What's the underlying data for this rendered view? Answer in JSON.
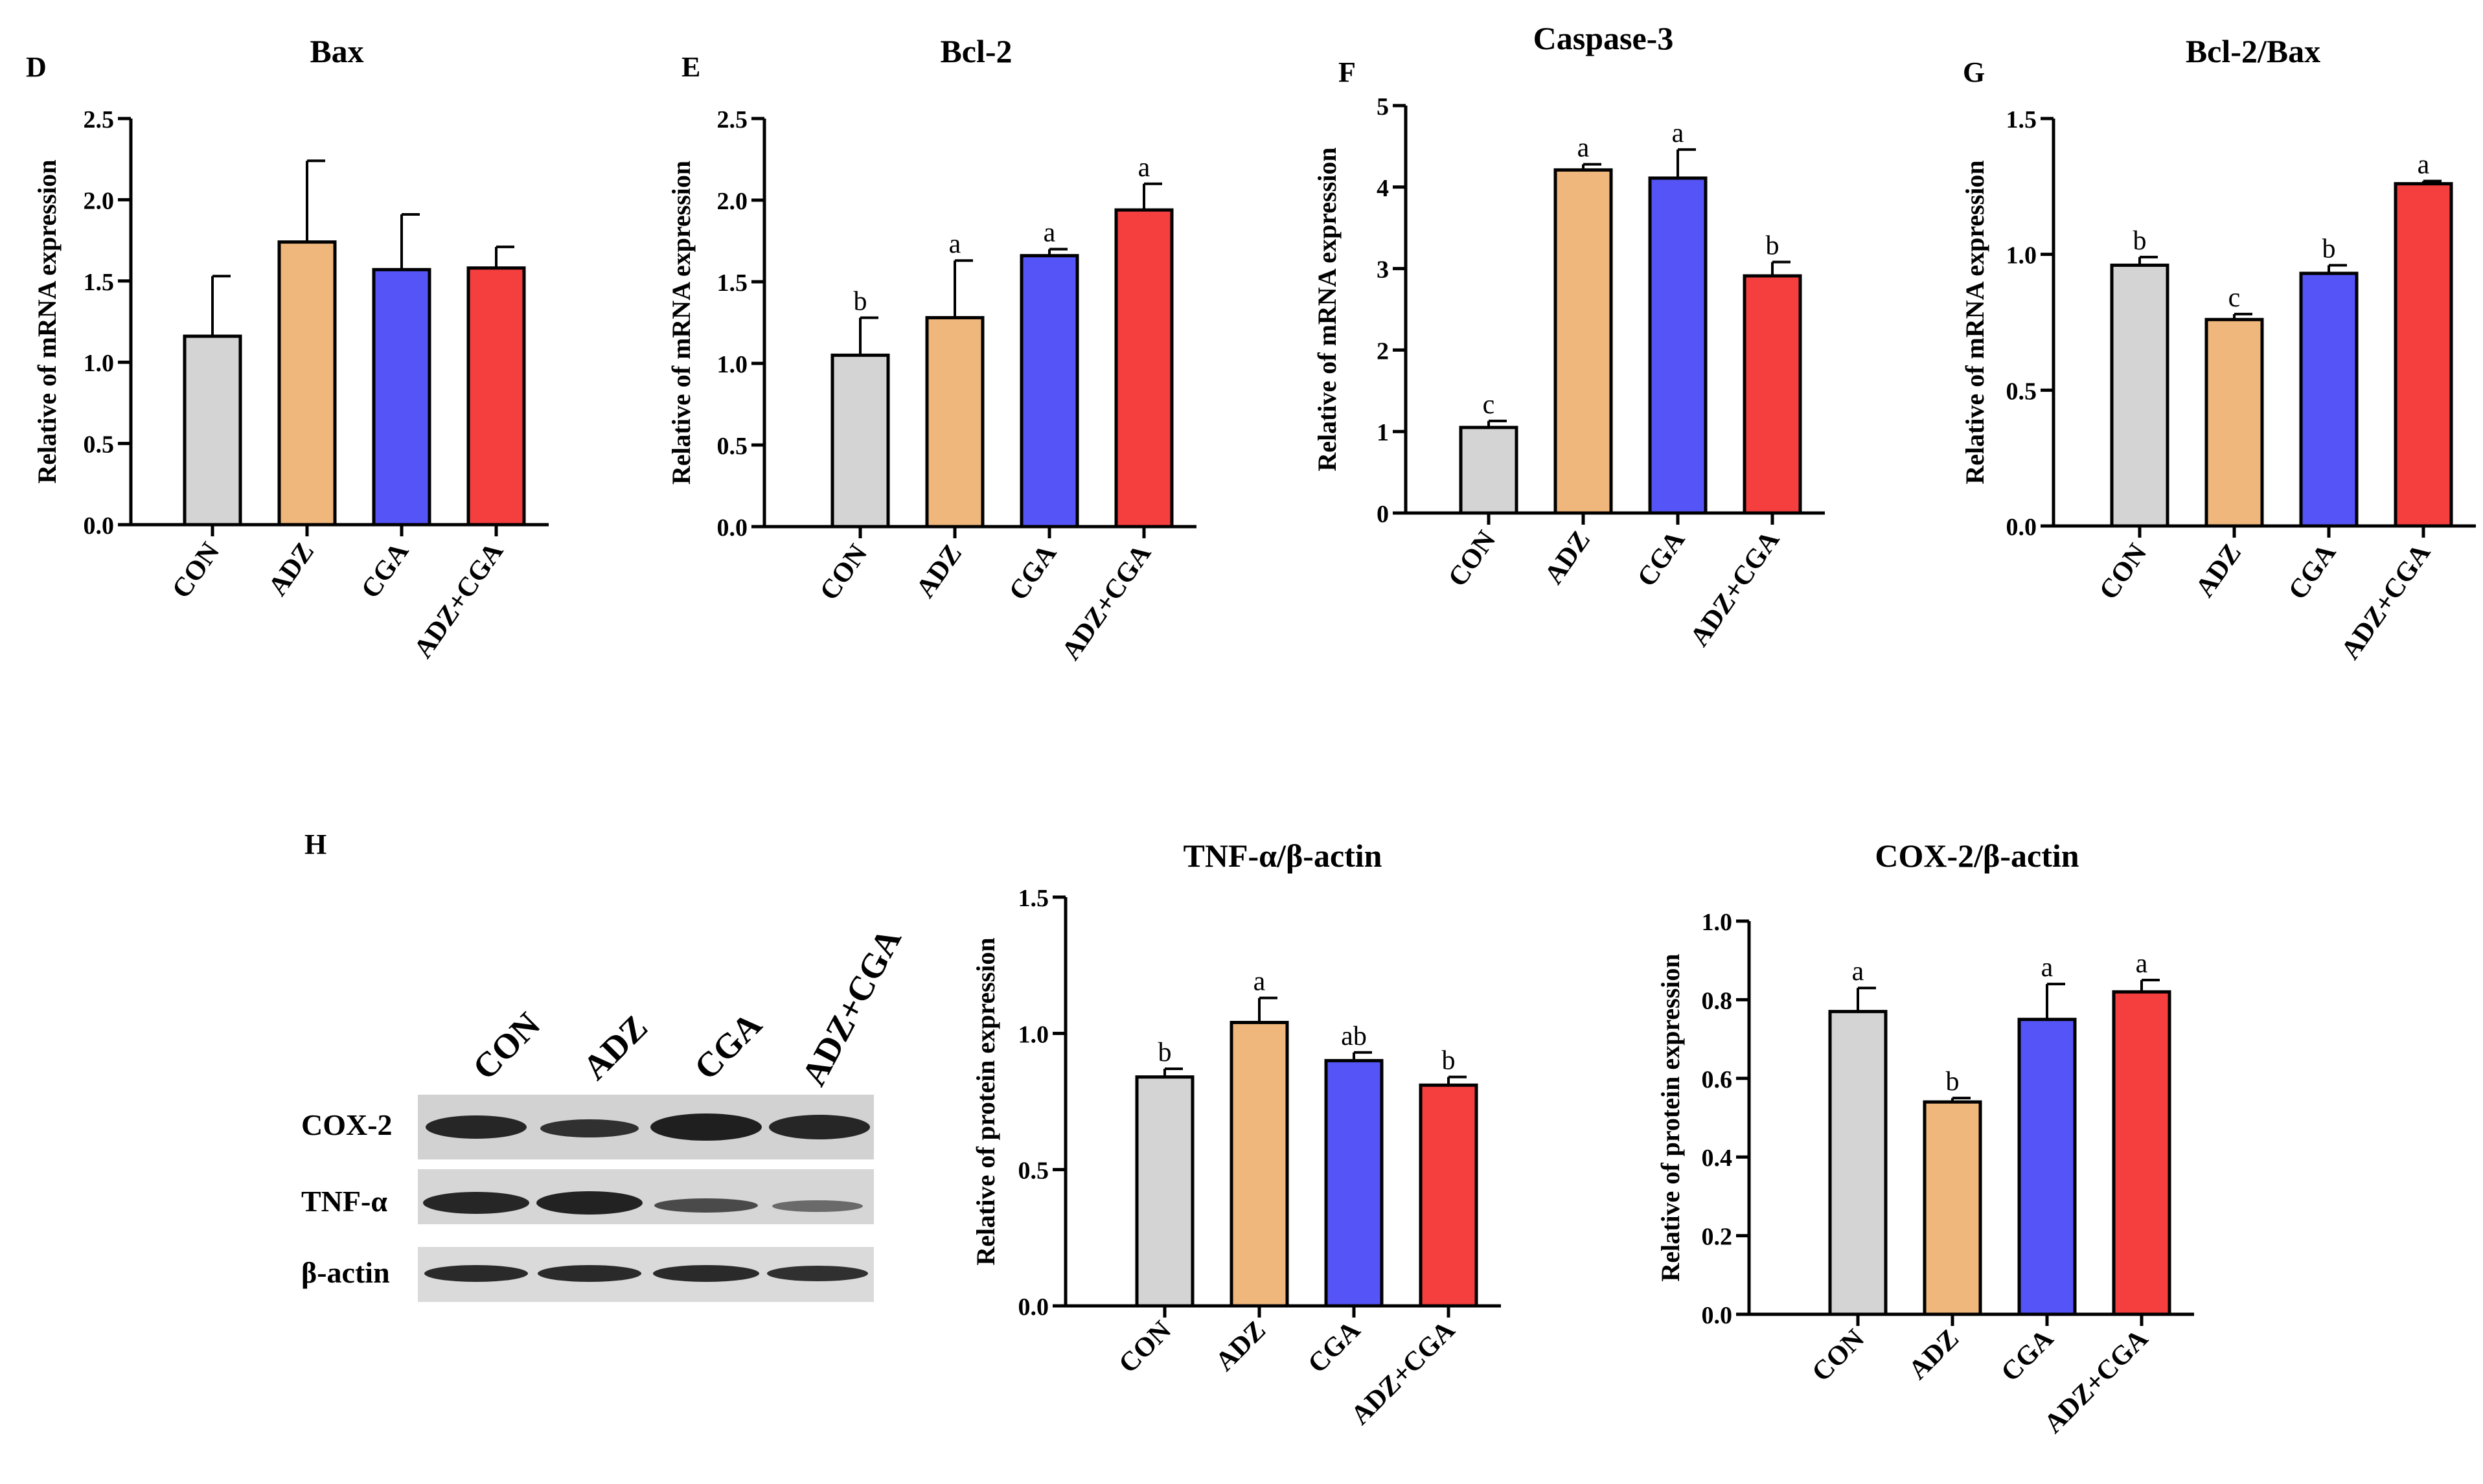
{
  "colors": {
    "CON": "#d4d4d4",
    "ADZ": "#f0b77c",
    "CGA": "#5555f7",
    "ADZ+CGA": "#f53e3e",
    "axis": "#000000",
    "blot_bg": "#d2d2d2",
    "band": "#262626"
  },
  "groups": [
    "CON",
    "ADZ",
    "CGA",
    "ADZ+CGA"
  ],
  "chart_data": [
    {
      "panel": "D",
      "type": "bar",
      "title": "Bax",
      "ylabel": "Relative of mRNA expression",
      "xlabel": "",
      "categories": [
        "CON",
        "ADZ",
        "CGA",
        "ADZ+CGA"
      ],
      "values": [
        1.16,
        1.74,
        1.57,
        1.58
      ],
      "errors": [
        0.37,
        0.5,
        0.34,
        0.13
      ],
      "letters": [
        "",
        "",
        "",
        ""
      ],
      "ylim": [
        0,
        2.5
      ],
      "ticks": [
        0.0,
        0.5,
        1.0,
        1.5,
        2.0,
        2.5
      ],
      "tick_labels": [
        "0.0",
        "0.5",
        "1.0",
        "1.5",
        "2.0",
        "2.5"
      ],
      "grid": false
    },
    {
      "panel": "E",
      "type": "bar",
      "title": "Bcl-2",
      "ylabel": "Relative of mRNA expression",
      "xlabel": "",
      "categories": [
        "CON",
        "ADZ",
        "CGA",
        "ADZ+CGA"
      ],
      "values": [
        1.05,
        1.28,
        1.66,
        1.94
      ],
      "errors": [
        0.23,
        0.35,
        0.04,
        0.16
      ],
      "letters": [
        "b",
        "a",
        "a",
        "a"
      ],
      "ylim": [
        0,
        2.5
      ],
      "ticks": [
        0.0,
        0.5,
        1.0,
        1.5,
        2.0,
        2.5
      ],
      "tick_labels": [
        "0.0",
        "0.5",
        "1.0",
        "1.5",
        "2.0",
        "2.5"
      ],
      "grid": false
    },
    {
      "panel": "F",
      "type": "bar",
      "title": "Caspase-3",
      "ylabel": "Relative of mRNA expression",
      "xlabel": "",
      "categories": [
        "CON",
        "ADZ",
        "CGA",
        "ADZ+CGA"
      ],
      "values": [
        1.05,
        4.21,
        4.11,
        2.91
      ],
      "errors": [
        0.08,
        0.07,
        0.35,
        0.17
      ],
      "letters": [
        "c",
        "a",
        "a",
        "b"
      ],
      "ylim": [
        0,
        5
      ],
      "ticks": [
        0,
        1,
        2,
        3,
        4,
        5
      ],
      "tick_labels": [
        "0",
        "1",
        "2",
        "3",
        "4",
        "5"
      ],
      "grid": false
    },
    {
      "panel": "G",
      "type": "bar",
      "title": "Bcl-2/Bax",
      "ylabel": "Relative of mRNA expression",
      "xlabel": "",
      "categories": [
        "CON",
        "ADZ",
        "CGA",
        "ADZ+CGA"
      ],
      "values": [
        0.96,
        0.76,
        0.93,
        1.26
      ],
      "errors": [
        0.03,
        0.02,
        0.03,
        0.01
      ],
      "letters": [
        "b",
        "c",
        "b",
        "a"
      ],
      "ylim": [
        0,
        1.5
      ],
      "ticks": [
        0.0,
        0.5,
        1.0,
        1.5
      ],
      "tick_labels": [
        "0.0",
        "0.5",
        "1.0",
        "1.5"
      ],
      "grid": false
    },
    {
      "panel": "",
      "type": "bar",
      "title": "TNF-α/β-actin",
      "ylabel": "Relative of protein expression",
      "xlabel": "",
      "categories": [
        "CON",
        "ADZ",
        "CGA",
        "ADZ+CGA"
      ],
      "values": [
        0.84,
        1.04,
        0.9,
        0.81
      ],
      "errors": [
        0.03,
        0.09,
        0.03,
        0.03
      ],
      "letters": [
        "b",
        "a",
        "ab",
        "b"
      ],
      "ylim": [
        0,
        1.5
      ],
      "ticks": [
        0.0,
        0.5,
        1.0,
        1.5
      ],
      "tick_labels": [
        "0.0",
        "0.5",
        "1.0",
        "1.5"
      ],
      "grid": false
    },
    {
      "panel": "",
      "type": "bar",
      "title": "COX-2/β-actin",
      "ylabel": "Relative of protein expression",
      "xlabel": "",
      "categories": [
        "CON",
        "ADZ",
        "CGA",
        "ADZ+CGA"
      ],
      "values": [
        0.77,
        0.54,
        0.75,
        0.82
      ],
      "errors": [
        0.06,
        0.01,
        0.09,
        0.03
      ],
      "letters": [
        "a",
        "b",
        "a",
        "a"
      ],
      "ylim": [
        0,
        1.0
      ],
      "ticks": [
        0.0,
        0.2,
        0.4,
        0.6,
        0.8,
        1.0
      ],
      "tick_labels": [
        "0.0",
        "0.2",
        "0.4",
        "0.6",
        "0.8",
        "1.0"
      ],
      "grid": false
    }
  ],
  "blot": {
    "panel": "H",
    "lane_labels": [
      "CON",
      "ADZ",
      "CGA",
      "ADZ+CGA"
    ],
    "proteins": [
      "COX-2",
      "TNF-α",
      "β-actin"
    ]
  }
}
